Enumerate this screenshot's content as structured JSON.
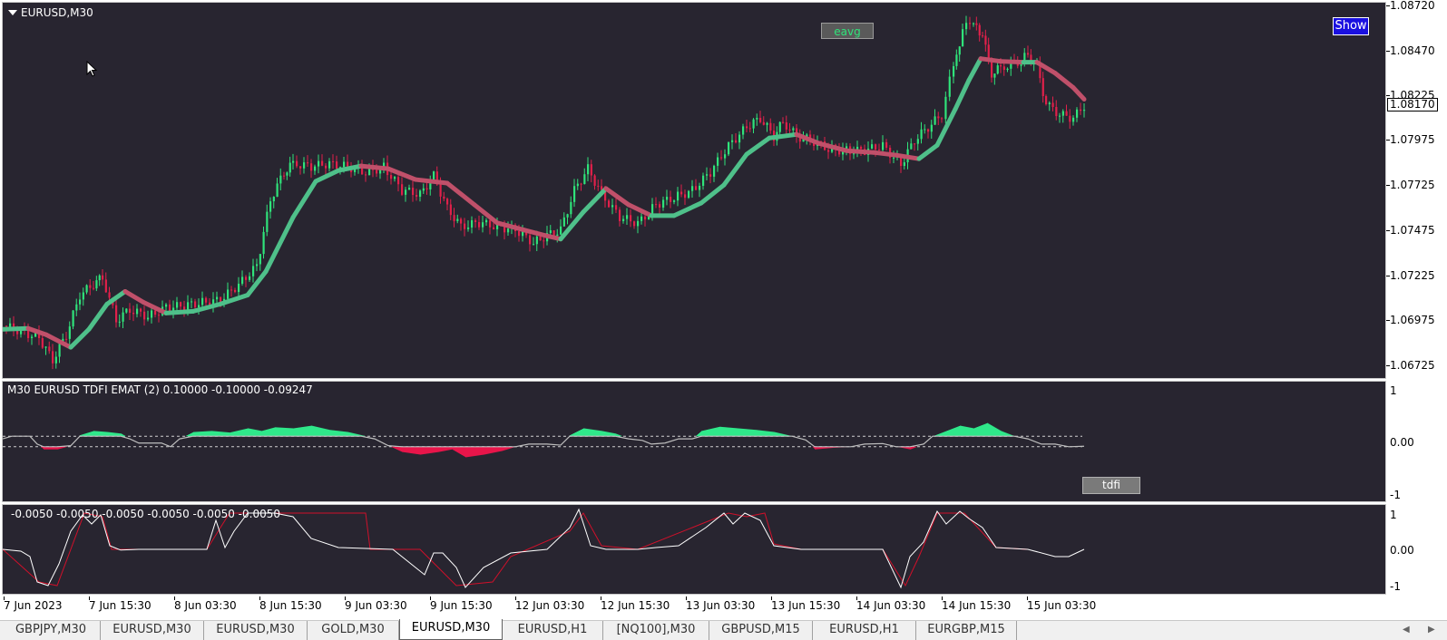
{
  "window": {
    "symbol_title": "EURUSD,M30",
    "current_price": "1.08170"
  },
  "buttons": {
    "eavg": "eavg",
    "show": "Show",
    "tdfi": "tdfi"
  },
  "price_axis": [
    "1.08720",
    "1.08470",
    "1.08225",
    "1.07975",
    "1.07725",
    "1.07475",
    "1.07225",
    "1.06975",
    "1.06725"
  ],
  "tdfi_panel": {
    "title": "M30 EURUSD TDFI  EMAT (2) 0.10000 -0.10000 -0.09247",
    "axis": [
      "1",
      "0.00",
      "-1"
    ]
  },
  "osc_panel": {
    "title": "-0.0050 -0.0050 -0.0050 -0.0050 -0.0050 -0.0050",
    "axis": [
      "1",
      "0.00",
      "-1"
    ]
  },
  "time_axis": [
    "7 Jun 2023",
    "7 Jun 15:30",
    "8 Jun 03:30",
    "8 Jun 15:30",
    "9 Jun 03:30",
    "9 Jun 15:30",
    "12 Jun 03:30",
    "12 Jun 15:30",
    "13 Jun 03:30",
    "13 Jun 15:30",
    "14 Jun 03:30",
    "14 Jun 15:30",
    "15 Jun 03:30"
  ],
  "tabs": [
    {
      "label": "GBPJPY,M30",
      "active": false
    },
    {
      "label": "EURUSD,M30",
      "active": false
    },
    {
      "label": "EURUSD,M30",
      "active": false
    },
    {
      "label": "GOLD,M30",
      "active": false
    },
    {
      "label": "EURUSD,M30",
      "active": true
    },
    {
      "label": "EURUSD,H1",
      "active": false
    },
    {
      "label": "[NQ100],M30",
      "active": false
    },
    {
      "label": "GBPUSD,M15",
      "active": false
    },
    {
      "label": "EURUSD,H1",
      "active": false
    },
    {
      "label": "EURGBP,M15",
      "active": false
    }
  ],
  "colors": {
    "background": "#282530",
    "bull_candle": "#2fe37a",
    "bear_candle": "#e0204a",
    "ma_up": "#4fc08a",
    "ma_down": "#c0506a",
    "tdfi_pos": "#2fe88a",
    "tdfi_neg": "#e8154a"
  },
  "icons": {
    "collapse": "triangle-down-icon",
    "cursor": "mouse-pointer-icon",
    "tab_left": "arrow-left-icon",
    "tab_right": "arrow-right-icon"
  },
  "chart_data": {
    "type": "line",
    "y_range": [
      1.0666,
      1.0874
    ],
    "moving_average": [
      [
        0,
        1.0693
      ],
      [
        28,
        1.06935
      ],
      [
        48,
        1.069
      ],
      [
        75,
        1.0683
      ],
      [
        95,
        1.0693
      ],
      [
        115,
        1.0707
      ],
      [
        135,
        1.0714
      ],
      [
        155,
        1.0708
      ],
      [
        180,
        1.0702
      ],
      [
        210,
        1.0703
      ],
      [
        240,
        1.0707
      ],
      [
        270,
        1.0712
      ],
      [
        290,
        1.0725
      ],
      [
        320,
        1.0755
      ],
      [
        345,
        1.0775
      ],
      [
        370,
        1.0781
      ],
      [
        395,
        1.07835
      ],
      [
        425,
        1.0782
      ],
      [
        455,
        1.0776
      ],
      [
        490,
        1.0774
      ],
      [
        520,
        1.0762
      ],
      [
        545,
        1.0752
      ],
      [
        575,
        1.0748
      ],
      [
        598,
        1.0745
      ],
      [
        615,
        1.0743
      ],
      [
        640,
        1.0758
      ],
      [
        665,
        1.0771
      ],
      [
        690,
        1.0762
      ],
      [
        715,
        1.0756
      ],
      [
        740,
        1.0756
      ],
      [
        770,
        1.0763
      ],
      [
        795,
        1.0773
      ],
      [
        820,
        1.079
      ],
      [
        845,
        1.0799
      ],
      [
        875,
        1.0801
      ],
      [
        900,
        1.0796
      ],
      [
        930,
        1.0792
      ],
      [
        960,
        1.0791
      ],
      [
        985,
        1.07895
      ],
      [
        1010,
        1.07875
      ],
      [
        1030,
        1.0795
      ],
      [
        1050,
        1.0815
      ],
      [
        1065,
        1.0831
      ],
      [
        1078,
        1.0843
      ],
      [
        1100,
        1.08415
      ],
      [
        1125,
        1.0841
      ],
      [
        1140,
        1.0841
      ],
      [
        1160,
        1.0835
      ],
      [
        1180,
        1.0827
      ],
      [
        1192,
        1.08205
      ]
    ],
    "candle_closes": [
      [
        0,
        1.0695
      ],
      [
        20,
        1.0692
      ],
      [
        40,
        1.0688
      ],
      [
        55,
        1.0676
      ],
      [
        70,
        1.069
      ],
      [
        85,
        1.0712
      ],
      [
        100,
        1.0718
      ],
      [
        110,
        1.0722
      ],
      [
        125,
        1.0698
      ],
      [
        140,
        1.0704
      ],
      [
        160,
        1.07
      ],
      [
        180,
        1.0705
      ],
      [
        200,
        1.0706
      ],
      [
        220,
        1.0708
      ],
      [
        240,
        1.0709
      ],
      [
        260,
        1.0718
      ],
      [
        280,
        1.0728
      ],
      [
        295,
        1.0765
      ],
      [
        310,
        1.078
      ],
      [
        320,
        1.0785
      ],
      [
        340,
        1.0783
      ],
      [
        360,
        1.0785
      ],
      [
        380,
        1.0783
      ],
      [
        400,
        1.078
      ],
      [
        420,
        1.0783
      ],
      [
        440,
        1.077
      ],
      [
        460,
        1.0768
      ],
      [
        475,
        1.0778
      ],
      [
        490,
        1.076
      ],
      [
        505,
        1.075
      ],
      [
        525,
        1.0752
      ],
      [
        545,
        1.075
      ],
      [
        565,
        1.0748
      ],
      [
        585,
        1.0741
      ],
      [
        600,
        1.0745
      ],
      [
        615,
        1.0748
      ],
      [
        630,
        1.077
      ],
      [
        645,
        1.0782
      ],
      [
        660,
        1.0768
      ],
      [
        680,
        1.0755
      ],
      [
        700,
        1.0752
      ],
      [
        720,
        1.0762
      ],
      [
        740,
        1.0766
      ],
      [
        760,
        1.077
      ],
      [
        780,
        1.078
      ],
      [
        800,
        1.0795
      ],
      [
        820,
        1.0805
      ],
      [
        835,
        1.081
      ],
      [
        850,
        1.08
      ],
      [
        860,
        1.0808
      ],
      [
        875,
        1.08
      ],
      [
        890,
        1.0798
      ],
      [
        910,
        1.0793
      ],
      [
        930,
        1.0792
      ],
      [
        950,
        1.0792
      ],
      [
        970,
        1.0795
      ],
      [
        990,
        1.0784
      ],
      [
        1005,
        1.0798
      ],
      [
        1020,
        1.0805
      ],
      [
        1035,
        1.0812
      ],
      [
        1048,
        1.084
      ],
      [
        1058,
        1.0858
      ],
      [
        1070,
        1.0865
      ],
      [
        1080,
        1.0855
      ],
      [
        1090,
        1.0835
      ],
      [
        1100,
        1.0838
      ],
      [
        1115,
        1.084
      ],
      [
        1130,
        1.0845
      ],
      [
        1140,
        1.0838
      ],
      [
        1150,
        1.0818
      ],
      [
        1165,
        1.0812
      ],
      [
        1180,
        1.081
      ],
      [
        1192,
        1.0817
      ]
    ],
    "tdfi": [
      [
        0,
        0.05
      ],
      [
        10,
        0.1
      ],
      [
        30,
        0.1
      ],
      [
        38,
        -0.05
      ],
      [
        45,
        -0.15
      ],
      [
        60,
        -0.15
      ],
      [
        75,
        -0.08
      ],
      [
        85,
        0.12
      ],
      [
        100,
        0.2
      ],
      [
        115,
        0.18
      ],
      [
        130,
        0.15
      ],
      [
        140,
        0.05
      ],
      [
        150,
        -0.03
      ],
      [
        175,
        -0.03
      ],
      [
        185,
        -0.1
      ],
      [
        195,
        0.05
      ],
      [
        210,
        0.18
      ],
      [
        230,
        0.2
      ],
      [
        250,
        0.17
      ],
      [
        270,
        0.25
      ],
      [
        285,
        0.2
      ],
      [
        300,
        0.27
      ],
      [
        320,
        0.25
      ],
      [
        340,
        0.3
      ],
      [
        360,
        0.22
      ],
      [
        380,
        0.18
      ],
      [
        395,
        0.12
      ],
      [
        410,
        0.05
      ],
      [
        425,
        -0.08
      ],
      [
        440,
        -0.2
      ],
      [
        460,
        -0.25
      ],
      [
        480,
        -0.2
      ],
      [
        495,
        -0.15
      ],
      [
        510,
        -0.3
      ],
      [
        530,
        -0.25
      ],
      [
        550,
        -0.18
      ],
      [
        565,
        -0.1
      ],
      [
        580,
        -0.05
      ],
      [
        600,
        -0.05
      ],
      [
        615,
        -0.07
      ],
      [
        625,
        0.12
      ],
      [
        640,
        0.25
      ],
      [
        660,
        0.2
      ],
      [
        675,
        0.15
      ],
      [
        690,
        0.05
      ],
      [
        705,
        0.02
      ],
      [
        715,
        -0.05
      ],
      [
        730,
        -0.03
      ],
      [
        745,
        0.05
      ],
      [
        760,
        0.05
      ],
      [
        770,
        0.2
      ],
      [
        790,
        0.28
      ],
      [
        810,
        0.25
      ],
      [
        830,
        0.22
      ],
      [
        850,
        0.18
      ],
      [
        870,
        0.1
      ],
      [
        885,
        0.03
      ],
      [
        895,
        -0.15
      ],
      [
        915,
        -0.12
      ],
      [
        935,
        -0.1
      ],
      [
        950,
        -0.05
      ],
      [
        970,
        -0.04
      ],
      [
        985,
        -0.1
      ],
      [
        1000,
        -0.15
      ],
      [
        1015,
        -0.05
      ],
      [
        1025,
        0.1
      ],
      [
        1040,
        0.2
      ],
      [
        1055,
        0.3
      ],
      [
        1070,
        0.25
      ],
      [
        1085,
        0.35
      ],
      [
        1100,
        0.2
      ],
      [
        1115,
        0.1
      ],
      [
        1130,
        0.05
      ],
      [
        1145,
        -0.05
      ],
      [
        1160,
        -0.05
      ],
      [
        1175,
        -0.1
      ],
      [
        1192,
        -0.09
      ]
    ],
    "oscillator_white": [
      [
        0,
        0.0
      ],
      [
        20,
        -0.05
      ],
      [
        30,
        -0.2
      ],
      [
        38,
        -0.9
      ],
      [
        50,
        -1.0
      ],
      [
        62,
        -0.4
      ],
      [
        75,
        0.5
      ],
      [
        88,
        0.95
      ],
      [
        98,
        0.7
      ],
      [
        108,
        0.95
      ],
      [
        118,
        0.1
      ],
      [
        130,
        -0.02
      ],
      [
        150,
        0.0
      ],
      [
        200,
        0.0
      ],
      [
        225,
        0.0
      ],
      [
        235,
        0.8
      ],
      [
        245,
        0.05
      ],
      [
        255,
        0.5
      ],
      [
        270,
        1.0
      ],
      [
        300,
        1.0
      ],
      [
        320,
        0.9
      ],
      [
        340,
        0.3
      ],
      [
        370,
        0.05
      ],
      [
        430,
        0.0
      ],
      [
        455,
        -0.5
      ],
      [
        465,
        -0.7
      ],
      [
        475,
        -0.1
      ],
      [
        485,
        -0.1
      ],
      [
        500,
        -0.5
      ],
      [
        510,
        -1.05
      ],
      [
        530,
        -0.5
      ],
      [
        560,
        -0.1
      ],
      [
        600,
        0.0
      ],
      [
        625,
        0.6
      ],
      [
        635,
        1.1
      ],
      [
        648,
        0.1
      ],
      [
        665,
        0.0
      ],
      [
        700,
        0.0
      ],
      [
        720,
        0.05
      ],
      [
        745,
        0.1
      ],
      [
        775,
        0.6
      ],
      [
        795,
        1.0
      ],
      [
        805,
        0.7
      ],
      [
        818,
        1.0
      ],
      [
        835,
        0.8
      ],
      [
        850,
        0.1
      ],
      [
        880,
        0.0
      ],
      [
        930,
        0.0
      ],
      [
        970,
        0.0
      ],
      [
        990,
        -1.05
      ],
      [
        1000,
        -0.2
      ],
      [
        1015,
        0.2
      ],
      [
        1030,
        1.05
      ],
      [
        1040,
        0.7
      ],
      [
        1055,
        1.05
      ],
      [
        1065,
        0.85
      ],
      [
        1080,
        0.6
      ],
      [
        1095,
        0.05
      ],
      [
        1130,
        0.0
      ],
      [
        1160,
        -0.2
      ],
      [
        1175,
        -0.2
      ],
      [
        1192,
        0.0
      ]
    ],
    "oscillator_red": [
      [
        0,
        0.0
      ],
      [
        40,
        -0.9
      ],
      [
        60,
        -1.0
      ],
      [
        90,
        1.0
      ],
      [
        110,
        0.9
      ],
      [
        120,
        0.0
      ],
      [
        200,
        0.0
      ],
      [
        225,
        0.0
      ],
      [
        250,
        1.0
      ],
      [
        360,
        1.0
      ],
      [
        400,
        1.0
      ],
      [
        405,
        0.0
      ],
      [
        460,
        0.0
      ],
      [
        500,
        -1.0
      ],
      [
        540,
        -0.9
      ],
      [
        560,
        -0.2
      ],
      [
        625,
        0.5
      ],
      [
        640,
        1.0
      ],
      [
        660,
        0.1
      ],
      [
        700,
        0.0
      ],
      [
        770,
        0.7
      ],
      [
        800,
        1.0
      ],
      [
        820,
        0.9
      ],
      [
        840,
        1.0
      ],
      [
        850,
        0.15
      ],
      [
        880,
        0.0
      ],
      [
        970,
        0.0
      ],
      [
        995,
        -1.0
      ],
      [
        1010,
        -0.2
      ],
      [
        1030,
        1.0
      ],
      [
        1060,
        1.0
      ],
      [
        1095,
        0.05
      ],
      [
        1130,
        0.0
      ]
    ]
  }
}
